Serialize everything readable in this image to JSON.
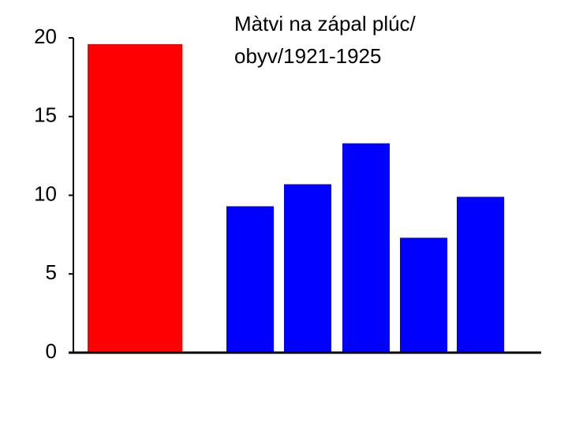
{
  "chart_data": {
    "type": "bar",
    "title": [
      "Màtvi na zápal plúc/",
      "obyv/1921-1925"
    ],
    "categories": [
      null,
      null,
      null,
      null,
      null,
      null
    ],
    "values": [
      19.6,
      9.3,
      10.7,
      13.3,
      7.3,
      9.9
    ],
    "colors": [
      "#ff0000",
      "#0000ff",
      "#0000ff",
      "#0000ff",
      "#0000ff",
      "#0000ff"
    ],
    "ylim": [
      0,
      20
    ],
    "yticks": [
      0,
      5,
      10,
      15,
      20
    ],
    "grid": false
  }
}
